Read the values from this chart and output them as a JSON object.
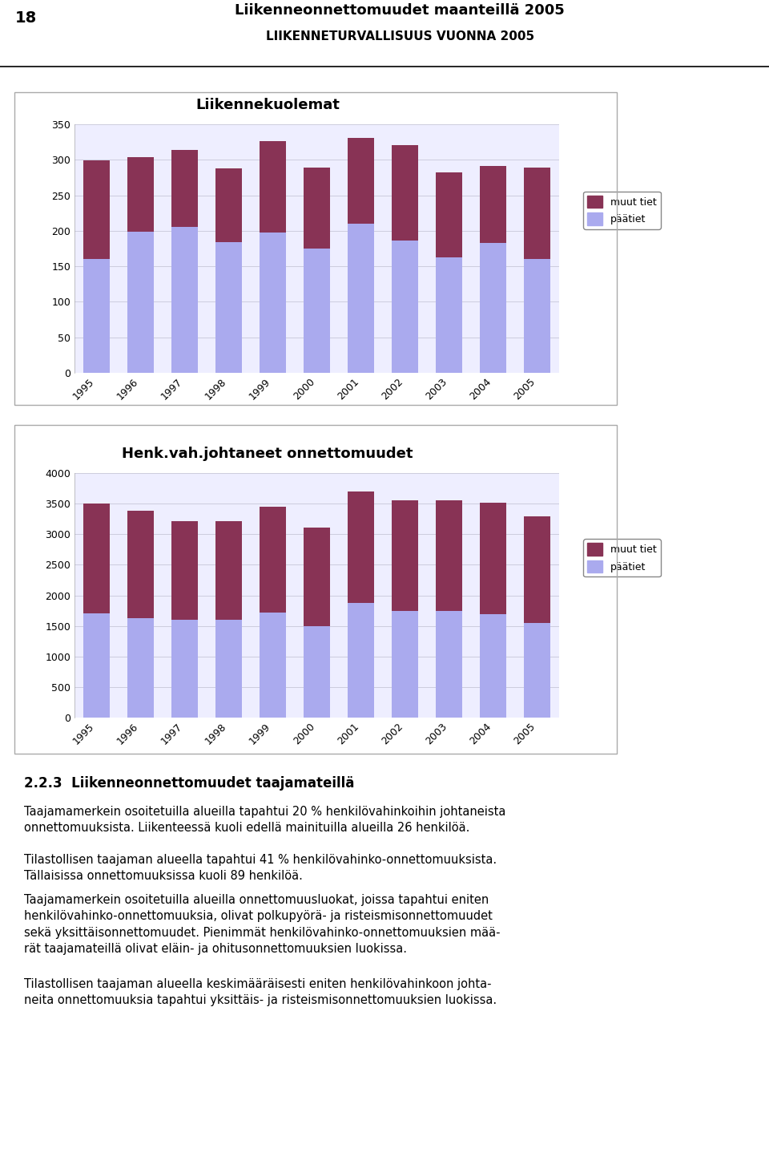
{
  "page_number": "18",
  "header_title": "Liikenneonnettomuudet maanteillä 2005",
  "header_subtitle": "LIIKENNETURVALLISUUS VUONNA 2005",
  "chart1": {
    "title": "Liikennekuolemat",
    "years": [
      "1995",
      "1996",
      "1997",
      "1998",
      "1999",
      "2000",
      "2001",
      "2002",
      "2003",
      "2004",
      "2005"
    ],
    "paatiet": [
      160,
      199,
      206,
      184,
      198,
      175,
      210,
      186,
      163,
      183,
      160
    ],
    "muut_tiet": [
      139,
      105,
      108,
      104,
      128,
      114,
      121,
      135,
      119,
      108,
      129
    ],
    "ylim": [
      0,
      350
    ],
    "yticks": [
      0,
      50,
      100,
      150,
      200,
      250,
      300,
      350
    ],
    "color_paatiet": "#aaaaee",
    "color_muut_tiet": "#883355",
    "legend_paatiet": "päätiet",
    "legend_muut_tiet": "muut tiet"
  },
  "chart2": {
    "title": "Henk.vah.johtaneet onnettomuudet",
    "years": [
      "1995",
      "1996",
      "1997",
      "1998",
      "1999",
      "2000",
      "2001",
      "2002",
      "2003",
      "2004",
      "2005"
    ],
    "paatiet": [
      1700,
      1620,
      1600,
      1600,
      1720,
      1490,
      1880,
      1740,
      1750,
      1690,
      1550
    ],
    "muut_tiet": [
      1800,
      1770,
      1610,
      1610,
      1730,
      1620,
      1820,
      1820,
      1810,
      1820,
      1740
    ],
    "ylim": [
      0,
      4000
    ],
    "yticks": [
      0,
      500,
      1000,
      1500,
      2000,
      2500,
      3000,
      3500,
      4000
    ],
    "color_paatiet": "#aaaaee",
    "color_muut_tiet": "#883355",
    "legend_paatiet": "päätiet",
    "legend_muut_tiet": "muut tiet"
  },
  "section_title": "2.2.3  Liikenneonnettomuudet taajamateillä",
  "para1": "Taajamamerkein osoitetuilla alueilla tapahtui 20 % henkilövahinkoihin johtaneista\nonnettomuuksista. Liikenteessä kuoli edellä mainituilla alueilla 26 henkilöä.",
  "para2": "Tilastollisen taajaman alueella tapahtui 41 % henkilövahinko-onnettomuuksista.\nTällaisissa onnettomuuksissa kuoli 89 henkilöä.",
  "para3": "Taajamamerkein osoitetuilla alueilla onnettomuusluokat, joissa tapahtui eniten\nhenkilövahinko-onnettomuuksia, olivat polkupyörä- ja risteismisonnettomuudet\nsekä yksittäisonnettomuudet. Pienimmät henkilövahinko-onnettomuuksien mää-\nrät taajamateillä olivat eläin- ja ohitusonnettomuuksien luokissa.",
  "para4": "Tilastollisen taajaman alueella keskimääräisesti eniten henkilövahinkoon johta-\nneita onnettomuuksia tapahtui yksittäis- ja risteismisonnettomuuksien luokissa.",
  "background_color": "#ffffff",
  "chart_bg": "#eeeeff",
  "grid_color": "#ccccdd",
  "chart_border_color": "#aaaaaa"
}
